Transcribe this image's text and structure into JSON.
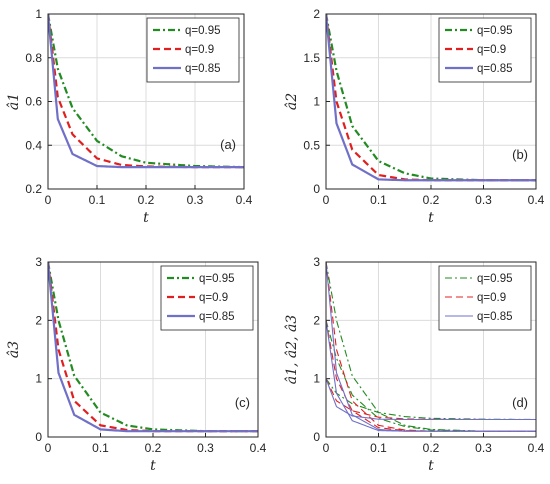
{
  "chart_data": [
    {
      "type": "line",
      "panel_label": "(a)",
      "xlabel": "t",
      "ylabel": "â1",
      "xlim": [
        0,
        0.4
      ],
      "ylim": [
        0.2,
        1
      ],
      "xticks": [
        "0",
        "0.1",
        "0.2",
        "0.3",
        "0.4"
      ],
      "yticks": [
        "0.2",
        "0.4",
        "0.6",
        "0.8",
        "1"
      ],
      "grid": true,
      "legend_position": "top-right",
      "series": [
        {
          "name": "q=0.95",
          "color": "#228b22",
          "style": "dashdot",
          "x": [
            0,
            0.02,
            0.05,
            0.1,
            0.15,
            0.2,
            0.3,
            0.4
          ],
          "values": [
            1.0,
            0.75,
            0.57,
            0.42,
            0.35,
            0.32,
            0.305,
            0.3
          ]
        },
        {
          "name": "q=0.9",
          "color": "#e02020",
          "style": "dashed",
          "x": [
            0,
            0.02,
            0.05,
            0.1,
            0.15,
            0.2,
            0.3,
            0.4
          ],
          "values": [
            1.0,
            0.62,
            0.45,
            0.34,
            0.31,
            0.303,
            0.3,
            0.3
          ]
        },
        {
          "name": "q=0.85",
          "color": "#7070c8",
          "style": "solid",
          "x": [
            0,
            0.02,
            0.05,
            0.1,
            0.15,
            0.2,
            0.3,
            0.4
          ],
          "values": [
            1.0,
            0.52,
            0.36,
            0.305,
            0.3,
            0.3,
            0.3,
            0.3
          ]
        }
      ]
    },
    {
      "type": "line",
      "panel_label": "(b)",
      "xlabel": "t",
      "ylabel": "â2",
      "xlim": [
        0,
        0.4
      ],
      "ylim": [
        0,
        2
      ],
      "xticks": [
        "0",
        "0.1",
        "0.2",
        "0.3",
        "0.4"
      ],
      "yticks": [
        "0",
        "0.5",
        "1",
        "1.5",
        "2"
      ],
      "grid": true,
      "legend_position": "top-right",
      "series": [
        {
          "name": "q=0.95",
          "color": "#228b22",
          "style": "dashdot",
          "x": [
            0,
            0.02,
            0.05,
            0.1,
            0.15,
            0.2,
            0.3,
            0.4
          ],
          "values": [
            2.0,
            1.35,
            0.72,
            0.32,
            0.18,
            0.12,
            0.1,
            0.1
          ]
        },
        {
          "name": "q=0.9",
          "color": "#e02020",
          "style": "dashed",
          "x": [
            0,
            0.02,
            0.05,
            0.1,
            0.15,
            0.2,
            0.3,
            0.4
          ],
          "values": [
            2.0,
            1.0,
            0.45,
            0.16,
            0.11,
            0.1,
            0.1,
            0.1
          ]
        },
        {
          "name": "q=0.85",
          "color": "#7070c8",
          "style": "solid",
          "x": [
            0,
            0.02,
            0.05,
            0.1,
            0.15,
            0.2,
            0.3,
            0.4
          ],
          "values": [
            2.0,
            0.75,
            0.28,
            0.11,
            0.1,
            0.1,
            0.1,
            0.1
          ]
        }
      ]
    },
    {
      "type": "line",
      "panel_label": "(c)",
      "xlabel": "t",
      "ylabel": "â3",
      "xlim": [
        0,
        0.4
      ],
      "ylim": [
        0,
        3
      ],
      "xticks": [
        "0",
        "0.1",
        "0.2",
        "0.3",
        "0.4"
      ],
      "yticks": [
        "0",
        "1",
        "2",
        "3"
      ],
      "grid": true,
      "legend_position": "top-right",
      "series": [
        {
          "name": "q=0.95",
          "color": "#228b22",
          "style": "dashdot",
          "x": [
            0,
            0.02,
            0.05,
            0.1,
            0.15,
            0.2,
            0.3,
            0.4
          ],
          "values": [
            3.0,
            2.0,
            1.05,
            0.42,
            0.2,
            0.13,
            0.1,
            0.1
          ]
        },
        {
          "name": "q=0.9",
          "color": "#e02020",
          "style": "dashed",
          "x": [
            0,
            0.02,
            0.05,
            0.1,
            0.15,
            0.2,
            0.3,
            0.4
          ],
          "values": [
            3.0,
            1.5,
            0.62,
            0.2,
            0.12,
            0.1,
            0.1,
            0.1
          ]
        },
        {
          "name": "q=0.85",
          "color": "#7070c8",
          "style": "solid",
          "x": [
            0,
            0.02,
            0.05,
            0.1,
            0.15,
            0.2,
            0.3,
            0.4
          ],
          "values": [
            3.0,
            1.1,
            0.38,
            0.13,
            0.1,
            0.1,
            0.1,
            0.1
          ]
        }
      ]
    },
    {
      "type": "line",
      "panel_label": "(d)",
      "xlabel": "t",
      "ylabel": "â1, â2, â3",
      "xlim": [
        0,
        0.4
      ],
      "ylim": [
        0,
        3
      ],
      "xticks": [
        "0",
        "0.1",
        "0.2",
        "0.3",
        "0.4"
      ],
      "yticks": [
        "0",
        "1",
        "2",
        "3"
      ],
      "grid": true,
      "legend_position": "top-right",
      "series": [
        {
          "name": "q=0.95",
          "color": "#228b22",
          "style": "dashdot",
          "x": [
            0,
            0.02,
            0.05,
            0.1,
            0.15,
            0.2,
            0.3,
            0.4
          ],
          "values": [
            1.0,
            0.75,
            0.57,
            0.42,
            0.35,
            0.32,
            0.305,
            0.3
          ]
        },
        {
          "color": "#228b22",
          "style": "dashdot",
          "x": [
            0,
            0.02,
            0.05,
            0.1,
            0.15,
            0.2,
            0.3,
            0.4
          ],
          "values": [
            2.0,
            1.35,
            0.72,
            0.32,
            0.18,
            0.12,
            0.1,
            0.1
          ]
        },
        {
          "color": "#228b22",
          "style": "dashdot",
          "x": [
            0,
            0.02,
            0.05,
            0.1,
            0.15,
            0.2,
            0.3,
            0.4
          ],
          "values": [
            3.0,
            2.0,
            1.05,
            0.42,
            0.2,
            0.13,
            0.1,
            0.1
          ]
        },
        {
          "name": "q=0.9",
          "color": "#e02020",
          "style": "dashed",
          "x": [
            0,
            0.02,
            0.05,
            0.1,
            0.15,
            0.2,
            0.3,
            0.4
          ],
          "values": [
            1.0,
            0.62,
            0.45,
            0.34,
            0.31,
            0.303,
            0.3,
            0.3
          ]
        },
        {
          "color": "#e02020",
          "style": "dashed",
          "x": [
            0,
            0.02,
            0.05,
            0.1,
            0.15,
            0.2,
            0.3,
            0.4
          ],
          "values": [
            2.0,
            1.0,
            0.45,
            0.16,
            0.11,
            0.1,
            0.1,
            0.1
          ]
        },
        {
          "color": "#e02020",
          "style": "dashed",
          "x": [
            0,
            0.02,
            0.05,
            0.1,
            0.15,
            0.2,
            0.3,
            0.4
          ],
          "values": [
            3.0,
            1.5,
            0.62,
            0.2,
            0.12,
            0.1,
            0.1,
            0.1
          ]
        },
        {
          "name": "q=0.85",
          "color": "#7070c8",
          "style": "solid",
          "x": [
            0,
            0.02,
            0.05,
            0.1,
            0.15,
            0.2,
            0.3,
            0.4
          ],
          "values": [
            1.0,
            0.52,
            0.36,
            0.305,
            0.3,
            0.3,
            0.3,
            0.3
          ]
        },
        {
          "color": "#7070c8",
          "style": "solid",
          "x": [
            0,
            0.02,
            0.05,
            0.1,
            0.15,
            0.2,
            0.3,
            0.4
          ],
          "values": [
            2.0,
            0.75,
            0.28,
            0.11,
            0.1,
            0.1,
            0.1,
            0.1
          ]
        },
        {
          "color": "#7070c8",
          "style": "solid",
          "x": [
            0,
            0.02,
            0.05,
            0.1,
            0.15,
            0.2,
            0.3,
            0.4
          ],
          "values": [
            3.0,
            1.1,
            0.38,
            0.13,
            0.1,
            0.1,
            0.1,
            0.1
          ]
        }
      ]
    }
  ]
}
